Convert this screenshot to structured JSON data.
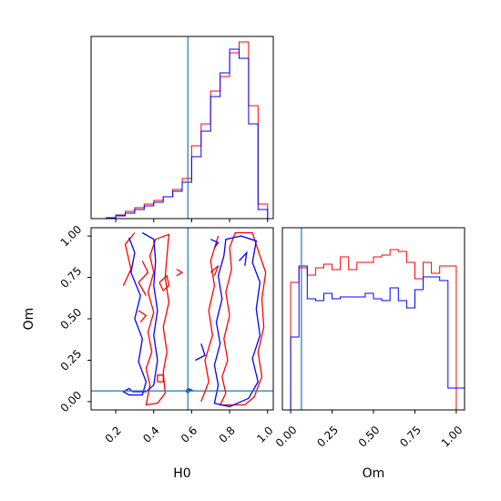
{
  "chart_data": {
    "type": "corner",
    "parameters": [
      "H0",
      "Om"
    ],
    "truth": {
      "H0": 0.58,
      "Om": 0.065
    },
    "series": [
      {
        "color": "#ff0000"
      },
      {
        "color": "#0000ff"
      }
    ],
    "H0_hist": {
      "bins": [
        0.1,
        0.15,
        0.2,
        0.25,
        0.3,
        0.35,
        0.4,
        0.45,
        0.5,
        0.55,
        0.6,
        0.65,
        0.7,
        0.75,
        0.8,
        0.85,
        0.9,
        0.95,
        1.0
      ],
      "red": [
        0.0,
        0.005,
        0.02,
        0.04,
        0.06,
        0.08,
        0.1,
        0.12,
        0.16,
        0.22,
        0.4,
        0.52,
        0.7,
        0.78,
        0.91,
        0.97,
        0.62,
        0.08
      ],
      "blue": [
        0.0,
        0.005,
        0.015,
        0.03,
        0.05,
        0.07,
        0.09,
        0.12,
        0.15,
        0.2,
        0.34,
        0.48,
        0.67,
        0.8,
        0.93,
        0.88,
        0.52,
        0.05
      ]
    },
    "Om_hist": {
      "bins": [
        -0.05,
        0.0,
        0.05,
        0.1,
        0.15,
        0.2,
        0.25,
        0.3,
        0.35,
        0.4,
        0.45,
        0.5,
        0.55,
        0.6,
        0.65,
        0.7,
        0.75,
        0.8,
        0.85,
        0.9,
        0.95,
        1.0,
        1.05
      ],
      "red": [
        0.0,
        0.7,
        0.78,
        0.74,
        0.78,
        0.8,
        0.77,
        0.84,
        0.77,
        0.81,
        0.81,
        0.84,
        0.85,
        0.88,
        0.87,
        0.81,
        0.72,
        0.81,
        0.75,
        0.79,
        0.79,
        0.0
      ],
      "blue": [
        0.0,
        0.4,
        0.79,
        0.61,
        0.6,
        0.64,
        0.61,
        0.62,
        0.62,
        0.62,
        0.64,
        0.61,
        0.6,
        0.67,
        0.6,
        0.56,
        0.66,
        0.73,
        0.73,
        0.71,
        0.12,
        0.12
      ]
    },
    "H0_axis": {
      "label": "H0",
      "range": [
        0.07,
        1.03
      ],
      "ticks": [
        0.2,
        0.4,
        0.6,
        0.8,
        1.0
      ],
      "tick_labels": [
        "0.2",
        "0.4",
        "0.6",
        "0.8",
        "1.0"
      ]
    },
    "Om_axis": {
      "label": "Om",
      "range": [
        -0.05,
        1.05
      ],
      "ticks": [
        0.0,
        0.25,
        0.5,
        0.75,
        1.0
      ],
      "tick_labels": [
        "0.00",
        "0.25",
        "0.50",
        "0.75",
        "1.00"
      ]
    },
    "contours": [
      {
        "color": "#ff0000",
        "points": [
          [
            0.75,
            -0.02
          ],
          [
            0.78,
            0.05
          ],
          [
            0.76,
            0.15
          ],
          [
            0.79,
            0.25
          ],
          [
            0.77,
            0.38
          ],
          [
            0.8,
            0.52
          ],
          [
            0.78,
            0.66
          ],
          [
            0.81,
            0.8
          ],
          [
            0.8,
            0.93
          ],
          [
            0.83,
            1.02
          ],
          [
            0.92,
            1.02
          ],
          [
            0.96,
            0.88
          ],
          [
            0.99,
            0.78
          ],
          [
            0.97,
            0.62
          ],
          [
            0.98,
            0.45
          ],
          [
            0.95,
            0.3
          ],
          [
            0.97,
            0.15
          ],
          [
            0.93,
            0.03
          ],
          [
            0.88,
            -0.02
          ]
        ],
        "closed": true
      },
      {
        "color": "#ff0000",
        "points": [
          [
            0.65,
            0.0
          ],
          [
            0.69,
            0.12
          ],
          [
            0.67,
            0.25
          ],
          [
            0.71,
            0.4
          ],
          [
            0.69,
            0.55
          ],
          [
            0.72,
            0.7
          ],
          [
            0.7,
            0.85
          ],
          [
            0.74,
            1.0
          ]
        ],
        "closed": false
      },
      {
        "color": "#ff0000",
        "points": [
          [
            0.36,
            -0.02
          ],
          [
            0.38,
            0.1
          ],
          [
            0.36,
            0.2
          ],
          [
            0.39,
            0.3
          ],
          [
            0.37,
            0.42
          ],
          [
            0.4,
            0.54
          ],
          [
            0.37,
            0.66
          ],
          [
            0.4,
            0.78
          ],
          [
            0.38,
            0.88
          ],
          [
            0.41,
            0.98
          ],
          [
            0.48,
            1.01
          ],
          [
            0.47,
            0.88
          ],
          [
            0.46,
            0.75
          ],
          [
            0.48,
            0.6
          ],
          [
            0.45,
            0.45
          ],
          [
            0.47,
            0.3
          ],
          [
            0.45,
            0.18
          ],
          [
            0.46,
            0.05
          ],
          [
            0.42,
            -0.01
          ]
        ],
        "closed": true
      },
      {
        "color": "#ff0000",
        "points": [
          [
            0.24,
            0.7
          ],
          [
            0.28,
            0.8
          ],
          [
            0.25,
            0.95
          ],
          [
            0.3,
            1.02
          ]
        ],
        "closed": false
      },
      {
        "color": "#ff0000",
        "points": [
          [
            0.34,
            0.85
          ],
          [
            0.37,
            0.78
          ],
          [
            0.32,
            0.72
          ],
          [
            0.36,
            0.64
          ]
        ],
        "closed": false
      },
      {
        "color": "#ff0000",
        "points": [
          [
            0.52,
            0.8
          ],
          [
            0.55,
            0.78
          ],
          [
            0.52,
            0.76
          ]
        ],
        "closed": false
      },
      {
        "color": "#ff0000",
        "points": [
          [
            0.43,
            0.72
          ],
          [
            0.47,
            0.76
          ],
          [
            0.48,
            0.7
          ],
          [
            0.45,
            0.67
          ],
          [
            0.43,
            0.72
          ]
        ],
        "closed": false
      },
      {
        "color": "#ff0000",
        "points": [
          [
            0.42,
            0.12
          ],
          [
            0.45,
            0.12
          ],
          [
            0.45,
            0.16
          ],
          [
            0.42,
            0.16
          ],
          [
            0.42,
            0.12
          ]
        ],
        "closed": false
      },
      {
        "color": "#ff0000",
        "points": [
          [
            0.32,
            0.55
          ],
          [
            0.36,
            0.52
          ],
          [
            0.33,
            0.48
          ]
        ],
        "closed": false
      },
      {
        "color": "#ff0000",
        "points": [
          [
            0.7,
            0.78
          ],
          [
            0.74,
            0.82
          ],
          [
            0.72,
            0.76
          ]
        ],
        "closed": false
      },
      {
        "color": "#0000ff",
        "points": [
          [
            0.72,
            -0.01
          ],
          [
            0.74,
            0.1
          ],
          [
            0.72,
            0.22
          ],
          [
            0.75,
            0.35
          ],
          [
            0.73,
            0.48
          ],
          [
            0.76,
            0.62
          ],
          [
            0.74,
            0.76
          ],
          [
            0.77,
            0.88
          ],
          [
            0.78,
            0.98
          ],
          [
            0.86,
            1.0
          ],
          [
            0.94,
            0.97
          ],
          [
            0.92,
            0.84
          ],
          [
            0.96,
            0.72
          ],
          [
            0.94,
            0.56
          ],
          [
            0.96,
            0.4
          ],
          [
            0.92,
            0.26
          ],
          [
            0.95,
            0.12
          ],
          [
            0.9,
            0.02
          ],
          [
            0.8,
            -0.03
          ]
        ],
        "closed": true
      },
      {
        "color": "#0000ff",
        "points": [
          [
            0.27,
            0.99
          ],
          [
            0.3,
            0.9
          ],
          [
            0.28,
            0.78
          ],
          [
            0.33,
            0.64
          ],
          [
            0.3,
            0.5
          ],
          [
            0.34,
            0.38
          ],
          [
            0.32,
            0.24
          ],
          [
            0.36,
            0.12
          ],
          [
            0.34,
            0.04
          ],
          [
            0.27,
            0.04
          ],
          [
            0.24,
            0.06
          ],
          [
            0.27,
            0.08
          ],
          [
            0.29,
            0.06
          ],
          [
            0.36,
            0.06
          ],
          [
            0.4,
            0.1
          ],
          [
            0.42,
            0.25
          ],
          [
            0.4,
            0.4
          ],
          [
            0.42,
            0.55
          ],
          [
            0.4,
            0.7
          ],
          [
            0.41,
            0.85
          ],
          [
            0.4,
            0.98
          ],
          [
            0.34,
            1.02
          ]
        ],
        "closed": false
      },
      {
        "color": "#0000ff",
        "points": [
          [
            0.7,
            0.98
          ],
          [
            0.74,
            0.96
          ],
          [
            0.72,
            0.93
          ]
        ],
        "closed": false
      },
      {
        "color": "#0000ff",
        "points": [
          [
            0.57,
            0.06
          ],
          [
            0.6,
            0.07
          ],
          [
            0.58,
            0.08
          ],
          [
            0.57,
            0.06
          ]
        ],
        "closed": false
      },
      {
        "color": "#0000ff",
        "points": [
          [
            0.62,
            0.25
          ],
          [
            0.67,
            0.28
          ],
          [
            0.65,
            0.35
          ]
        ],
        "closed": false
      },
      {
        "color": "#0000ff",
        "points": [
          [
            0.85,
            0.85
          ],
          [
            0.89,
            0.9
          ],
          [
            0.88,
            0.82
          ]
        ],
        "closed": false
      }
    ]
  }
}
